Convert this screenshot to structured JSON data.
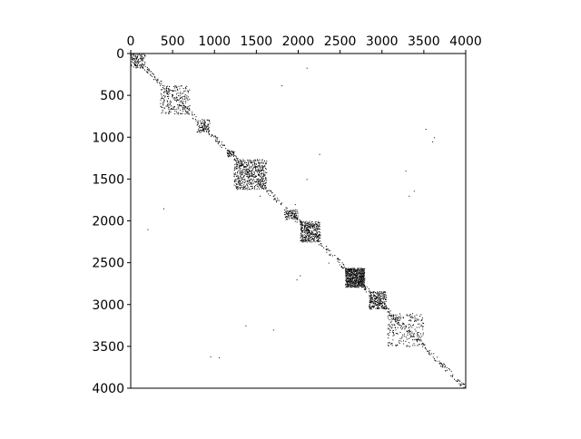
{
  "chart_data": {
    "type": "heatmap",
    "title": "",
    "xlabel": "",
    "ylabel": "",
    "xlim": [
      0,
      4000
    ],
    "ylim": [
      0,
      4000
    ],
    "x_axis_position": "top",
    "y_inverted": true,
    "grid": false,
    "legend": "none",
    "xticks": [
      0,
      500,
      1000,
      1500,
      2000,
      2500,
      3000,
      3500,
      4000
    ],
    "xtick_labels": [
      "0",
      "500",
      "1000",
      "1500",
      "2000",
      "2500",
      "3000",
      "3500",
      "4000"
    ],
    "yticks": [
      0,
      500,
      1000,
      1500,
      2000,
      2500,
      3000,
      3500,
      4000
    ],
    "ytick_labels": [
      "0",
      "500",
      "1000",
      "1500",
      "2000",
      "2500",
      "3000",
      "3500",
      "4000"
    ],
    "marker_color": "#000000",
    "blocks": [
      {
        "row_range": [
          0,
          170
        ],
        "col_range": [
          0,
          170
        ],
        "density": 0.35
      },
      {
        "row_range": [
          380,
          720
        ],
        "col_range": [
          350,
          700
        ],
        "density": 0.14
      },
      {
        "row_range": [
          780,
          940
        ],
        "col_range": [
          780,
          940
        ],
        "density": 0.3
      },
      {
        "row_range": [
          1150,
          1230
        ],
        "col_range": [
          1150,
          1230
        ],
        "density": 0.45
      },
      {
        "row_range": [
          1260,
          1620
        ],
        "col_range": [
          1230,
          1620
        ],
        "density": 0.3
      },
      {
        "row_range": [
          1860,
          1980
        ],
        "col_range": [
          1830,
          1990
        ],
        "density": 0.4
      },
      {
        "row_range": [
          2000,
          2250
        ],
        "col_range": [
          2020,
          2260
        ],
        "density": 0.45
      },
      {
        "row_range": [
          2560,
          2790
        ],
        "col_range": [
          2560,
          2790
        ],
        "density": 0.85
      },
      {
        "row_range": [
          2840,
          3050
        ],
        "col_range": [
          2840,
          3050
        ],
        "density": 0.45
      },
      {
        "row_range": [
          3100,
          3500
        ],
        "col_range": [
          3060,
          3500
        ],
        "density": 0.12
      }
    ],
    "diagonal_bands": [
      {
        "start": 0,
        "end": 4000,
        "halfwidth": 35,
        "density": 0.06
      }
    ],
    "scattered_points": [
      [
        170,
        2100
      ],
      [
        380,
        1800
      ],
      [
        1000,
        3620
      ],
      [
        1050,
        3600
      ],
      [
        1200,
        2250
      ],
      [
        1700,
        1540
      ],
      [
        1800,
        1960
      ],
      [
        2000,
        1960
      ],
      [
        2100,
        200
      ],
      [
        1850,
        390
      ],
      [
        3250,
        1370
      ],
      [
        3300,
        1700
      ],
      [
        3620,
        950
      ],
      [
        3630,
        1050
      ],
      [
        2700,
        1980
      ],
      [
        2650,
        2020
      ],
      [
        2500,
        2360
      ],
      [
        2450,
        2470
      ],
      [
        1700,
        3320
      ],
      [
        1640,
        3380
      ],
      [
        1400,
        3280
      ],
      [
        1500,
        2100
      ],
      [
        900,
        3520
      ],
      [
        3700,
        3680
      ]
    ]
  }
}
